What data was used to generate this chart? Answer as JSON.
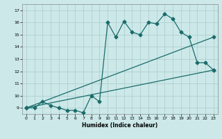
{
  "xlabel": "Humidex (Indice chaleur)",
  "ylabel": "",
  "bg_color": "#cce8e8",
  "grid_color": "#b0d0d0",
  "line_color": "#1a6b6b",
  "xlim": [
    -0.5,
    23.5
  ],
  "ylim": [
    8.5,
    17.5
  ],
  "xticks": [
    0,
    1,
    2,
    3,
    4,
    5,
    6,
    7,
    8,
    9,
    10,
    11,
    12,
    13,
    14,
    15,
    16,
    17,
    18,
    19,
    20,
    21,
    22,
    23
  ],
  "yticks": [
    9,
    10,
    11,
    12,
    13,
    14,
    15,
    16,
    17
  ],
  "line1_x": [
    0,
    1,
    2,
    3,
    4,
    5,
    6,
    7,
    8,
    9,
    10,
    11,
    12,
    13,
    14,
    15,
    16,
    17,
    18,
    19,
    20,
    21,
    22,
    23
  ],
  "line1_y": [
    9,
    9,
    9.5,
    9.2,
    9,
    8.8,
    8.8,
    8.6,
    10,
    9.5,
    16,
    14.8,
    16.1,
    15.2,
    15,
    16,
    15.9,
    16.7,
    16.3,
    15.2,
    14.8,
    12.7,
    12.7,
    12.1
  ],
  "line2_x": [
    0,
    23
  ],
  "line2_y": [
    9,
    14.8
  ],
  "line3_x": [
    0,
    23
  ],
  "line3_y": [
    9,
    12.1
  ],
  "marker": "D",
  "markersize": 2.5,
  "linewidth": 0.9
}
